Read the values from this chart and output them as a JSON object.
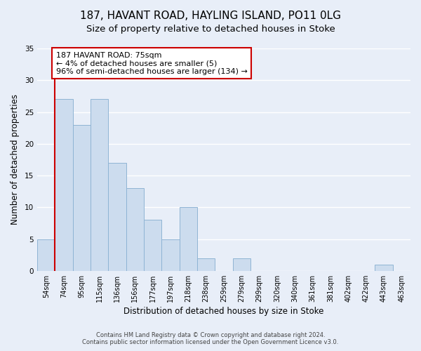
{
  "title": "187, HAVANT ROAD, HAYLING ISLAND, PO11 0LG",
  "subtitle": "Size of property relative to detached houses in Stoke",
  "xlabel": "Distribution of detached houses by size in Stoke",
  "ylabel": "Number of detached properties",
  "bar_labels": [
    "54sqm",
    "74sqm",
    "95sqm",
    "115sqm",
    "136sqm",
    "156sqm",
    "177sqm",
    "197sqm",
    "218sqm",
    "238sqm",
    "259sqm",
    "279sqm",
    "299sqm",
    "320sqm",
    "340sqm",
    "361sqm",
    "381sqm",
    "402sqm",
    "422sqm",
    "443sqm",
    "463sqm"
  ],
  "bar_values": [
    5,
    27,
    23,
    27,
    17,
    13,
    8,
    5,
    10,
    2,
    0,
    2,
    0,
    0,
    0,
    0,
    0,
    0,
    0,
    1,
    0
  ],
  "bar_color": "#ccdcee",
  "bar_edge_color": "#8fb4d4",
  "vline_color": "#cc0000",
  "annotation_title": "187 HAVANT ROAD: 75sqm",
  "annotation_line1": "← 4% of detached houses are smaller (5)",
  "annotation_line2": "96% of semi-detached houses are larger (134) →",
  "annotation_box_color": "#ffffff",
  "annotation_box_edge": "#cc0000",
  "ylim": [
    0,
    35
  ],
  "yticks": [
    0,
    5,
    10,
    15,
    20,
    25,
    30,
    35
  ],
  "footer1": "Contains HM Land Registry data © Crown copyright and database right 2024.",
  "footer2": "Contains public sector information licensed under the Open Government Licence v3.0.",
  "title_fontsize": 11,
  "subtitle_fontsize": 9.5,
  "background_color": "#e8eef8",
  "grid_color": "#ffffff",
  "tick_label_fontsize": 7,
  "ylabel_fontsize": 8.5,
  "xlabel_fontsize": 8.5
}
